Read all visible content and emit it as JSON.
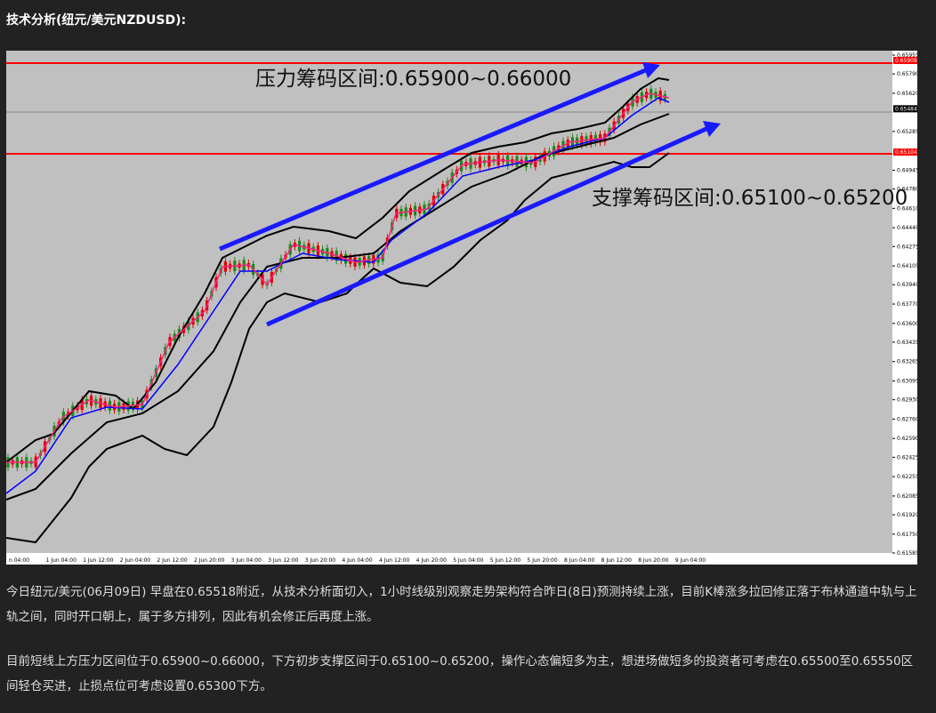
{
  "header": {
    "title": "技术分析(纽元/美元NZDUSD):"
  },
  "chart": {
    "annotations": [
      "压力筹码区间:0.65900~0.66000",
      "支撑筹码区间:0.65100~0.65200"
    ],
    "price_ticks": [
      "0.65955",
      "0.65790",
      "0.65620",
      "0.65285",
      "0.64945",
      "0.64780",
      "0.64610",
      "0.64440",
      "0.64275",
      "0.64105",
      "0.63940",
      "0.63770",
      "0.63600",
      "0.63435",
      "0.63265",
      "0.63095",
      "0.62930",
      "0.62760",
      "0.62590",
      "0.62425",
      "0.62255",
      "0.62085",
      "0.61920",
      "0.61750",
      "0.61585"
    ],
    "price_markers": [
      {
        "label": "0.65908",
        "color": "#ff0000"
      },
      {
        "label": "0.65484",
        "color": "#000000"
      },
      {
        "label": "0.65104",
        "color": "#ff0000"
      }
    ],
    "time_ticks": [
      "n 04:00",
      "1 Jun 04:00",
      "1 Jun 12:00",
      "2 Jun 04:00",
      "2 Jun 12:00",
      "2 Jun 20:00",
      "3 Jun 04:00",
      "3 Jun 12:00",
      "3 Jun 20:00",
      "4 Jun 04:00",
      "4 Jun 12:00",
      "4 Jun 20:00",
      "5 Jun 04:00",
      "5 Jun 12:00",
      "5 Jun 20:00",
      "8 Jun 04:00",
      "8 Jun 12:00",
      "8 Jun 20:00",
      "9 Jun 04:00"
    ]
  },
  "paragraphs": [
    "今日纽元/美元(06月09日) 早盘在0.65518附近，从技术分析面切入，1小时线级别观察走势架构符合昨日(8日)预测持续上涨，目前K棒涨多拉回修正落于布林通道中轨与上轨之间，同时开口朝上，属于多方排列，因此有机会修正后再度上涨。",
    "目前短线上方压力区间位于0.65900~0.66000，下方初步支撑区间于0.65100~0.65200，操作心态偏短多为主，想进场做短多的投资者可考虑在0.65500至0.65550区间轻仓买进，止损点位可考虑设置0.65300下方。"
  ]
}
